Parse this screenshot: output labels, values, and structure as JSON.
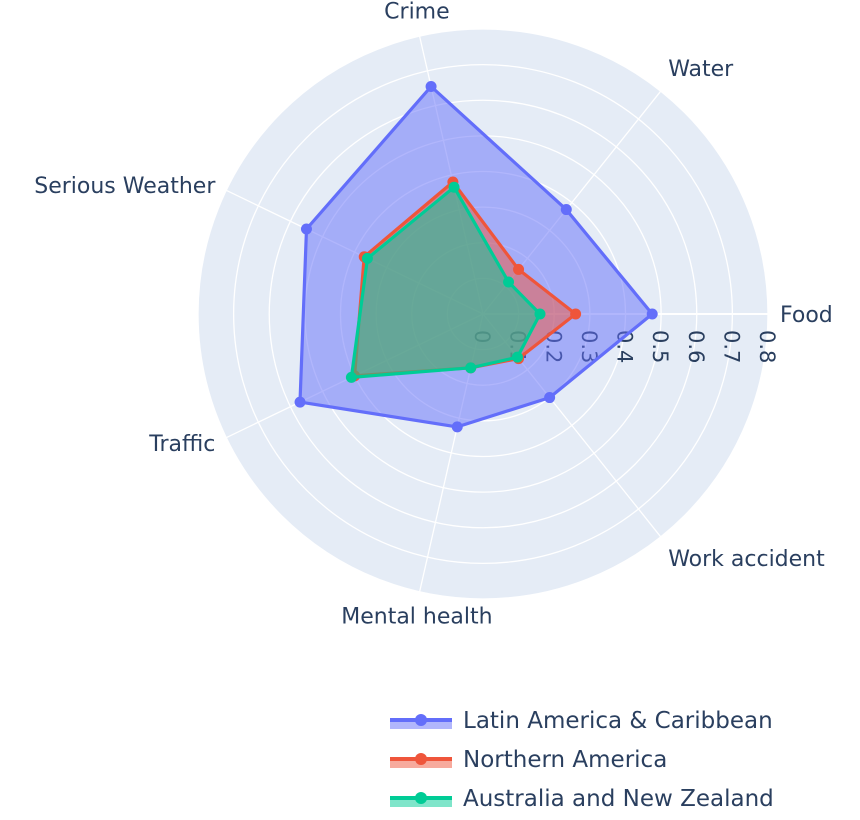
{
  "chart_data": {
    "type": "radar",
    "categories": [
      "Food",
      "Water",
      "Crime",
      "Serious Weather",
      "Traffic",
      "Mental health",
      "Work accident"
    ],
    "radial_range": [
      0,
      0.8
    ],
    "radial_ticks": [
      "0",
      "0.1",
      "0.2",
      "0.3",
      "0.4",
      "0.5",
      "0.6",
      "0.7",
      "0.8"
    ],
    "grid": true,
    "legend_position": "bottom-right",
    "series": [
      {
        "name": "Latin America & Caribbean",
        "color": "#636efa",
        "values": [
          0.475,
          0.375,
          0.655,
          0.55,
          0.57,
          0.325,
          0.3
        ]
      },
      {
        "name": "Northern America",
        "color": "#ef553b",
        "values": [
          0.26,
          0.16,
          0.38,
          0.37,
          0.4,
          0.155,
          0.16
        ]
      },
      {
        "name": "Australia and New Zealand",
        "color": "#00cc96",
        "values": [
          0.16,
          0.115,
          0.365,
          0.36,
          0.41,
          0.155,
          0.155
        ]
      }
    ]
  }
}
